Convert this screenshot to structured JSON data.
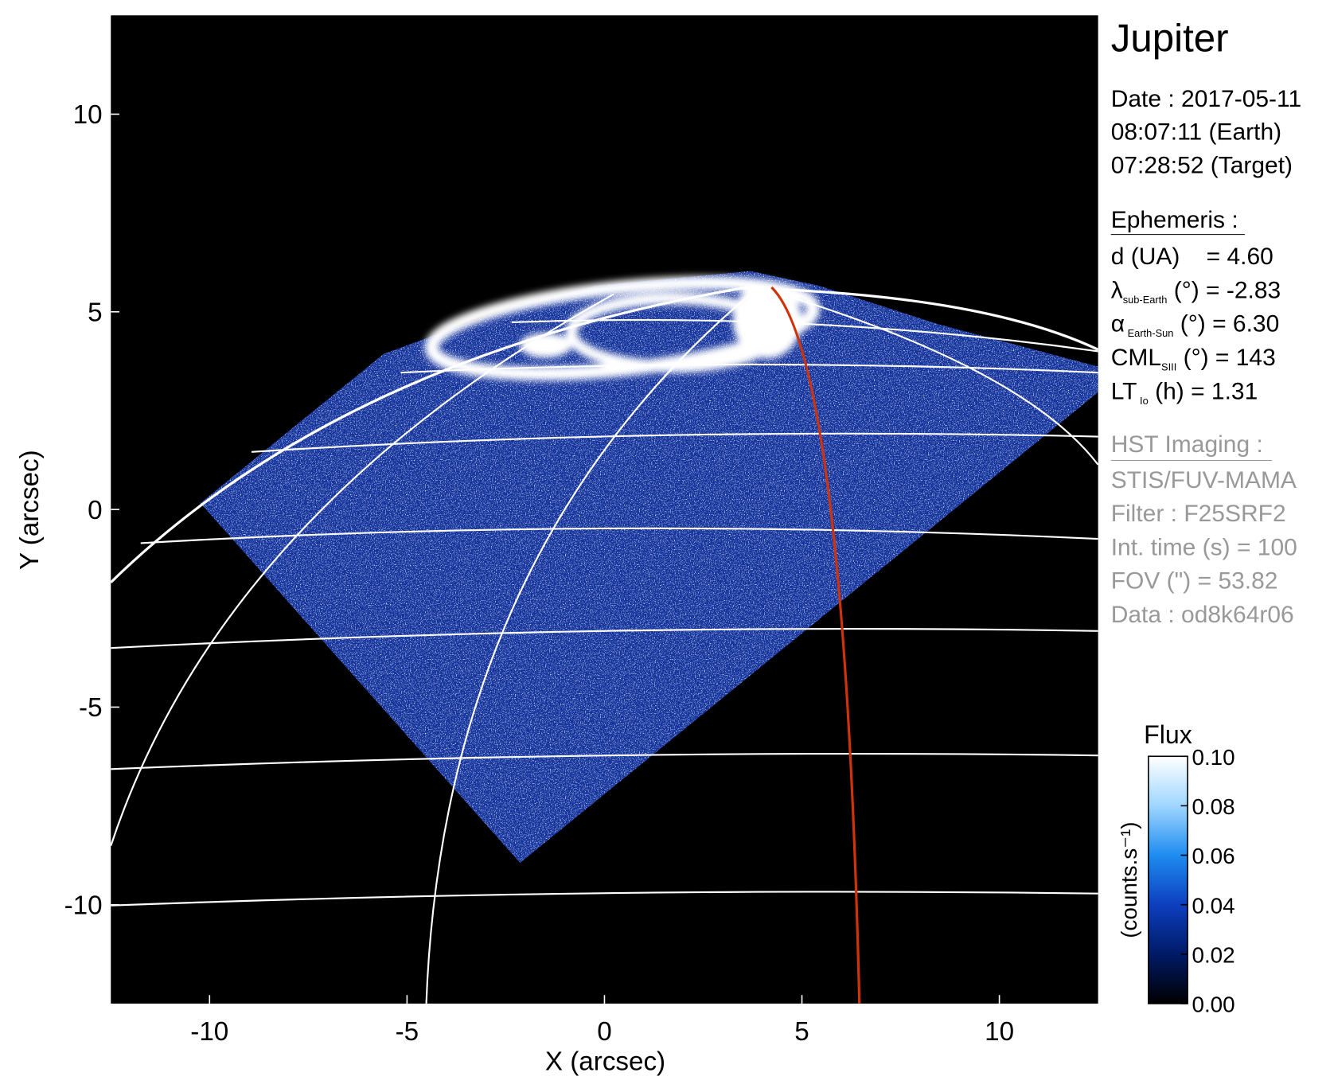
{
  "chart_data": {
    "type": "image",
    "xlabel": "X (arcsec)",
    "ylabel": "Y (arcsec)",
    "xlim": [
      -12.5,
      12.5
    ],
    "ylim": [
      -12.5,
      12.5
    ],
    "xticks": [
      -10,
      -5,
      0,
      5,
      10
    ],
    "yticks": [
      -10,
      -5,
      0,
      5,
      10
    ],
    "colorbar": {
      "title": "Flux",
      "label": "(counts.s⁻¹)",
      "lim": [
        0,
        0.1
      ],
      "colors": [
        "#000000",
        "#001a66",
        "#0d3fbf",
        "#1e8cf0",
        "#9fd6ff",
        "#ffffff"
      ],
      "ticks": [
        {
          "value": 0,
          "label": "0.00"
        },
        {
          "value": 0.02,
          "label": "0.02"
        },
        {
          "value": 0.04,
          "label": "0.04"
        },
        {
          "value": 0.06,
          "label": "0.06"
        },
        {
          "value": 0.08,
          "label": "0.08"
        },
        {
          "value": 0.1,
          "label": "0.10"
        }
      ]
    }
  },
  "panel": {
    "title": "Jupiter",
    "date": [
      "Date : 2017-05-11",
      "08:07:11 (Earth)",
      "07:28:52 (Target)"
    ],
    "ephemeris": {
      "heading": "Ephemeris :",
      "rows": [
        {
          "main": "d (UA)    = 4.60"
        },
        {
          "main": "λ",
          "sub": "sub-Earth",
          "rest": " (°) = -2.83"
        },
        {
          "main": "α",
          "sub": " Earth-Sun",
          "rest": " (°) = 6.30"
        },
        {
          "main": "CML",
          "sub": "SIII",
          "rest": " (°) = 143"
        },
        {
          "main": "LT",
          "sub": " Io",
          "rest": " (h) = 1.31"
        }
      ]
    },
    "imaging": {
      "heading": "HST Imaging :",
      "lines": [
        "STIS/FUV-MAMA",
        "Filter : F25SRF2",
        "Int. time (s) = 100",
        "FOV (\") = 53.82",
        "Data : od8k64r06"
      ]
    }
  }
}
